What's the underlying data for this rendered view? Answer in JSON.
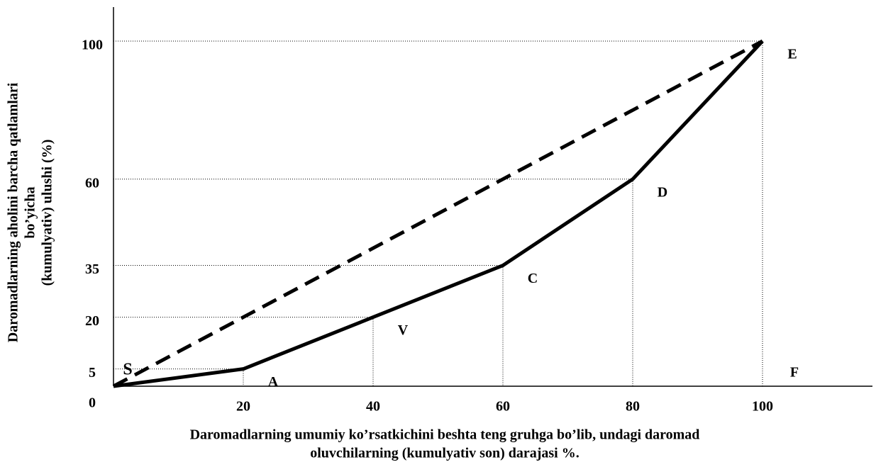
{
  "chart_data": {
    "type": "line",
    "x_label": [
      "Daromadlarning umumiy ko’rsatkichini beshta teng gruhga bo’lib, undagi daromad",
      "oluvchilarning (kumulyativ son) darajasi %."
    ],
    "y_label": [
      "Daromadlarning aholini barcha qatlamlari",
      "bo’yicha",
      "(kumulyativ) ulushi (%)"
    ],
    "x": [
      0,
      20,
      40,
      60,
      80,
      100
    ],
    "series": [
      {
        "values": [
          0,
          5,
          20,
          35,
          60,
          100
        ],
        "color": "#000000",
        "style": "solid",
        "point_labels": [
          "S",
          "A",
          "V",
          "C",
          "D",
          "E"
        ]
      },
      {
        "values": [
          0,
          20,
          40,
          60,
          80,
          100
        ],
        "color": "#000000",
        "style": "dashed"
      }
    ],
    "annotations": [
      "F"
    ],
    "xlim": [
      0,
      100
    ],
    "ylim": [
      0,
      100
    ],
    "xticks": [
      20,
      40,
      60,
      80,
      100
    ],
    "yticks": [
      0,
      5,
      20,
      35,
      60,
      100
    ]
  }
}
